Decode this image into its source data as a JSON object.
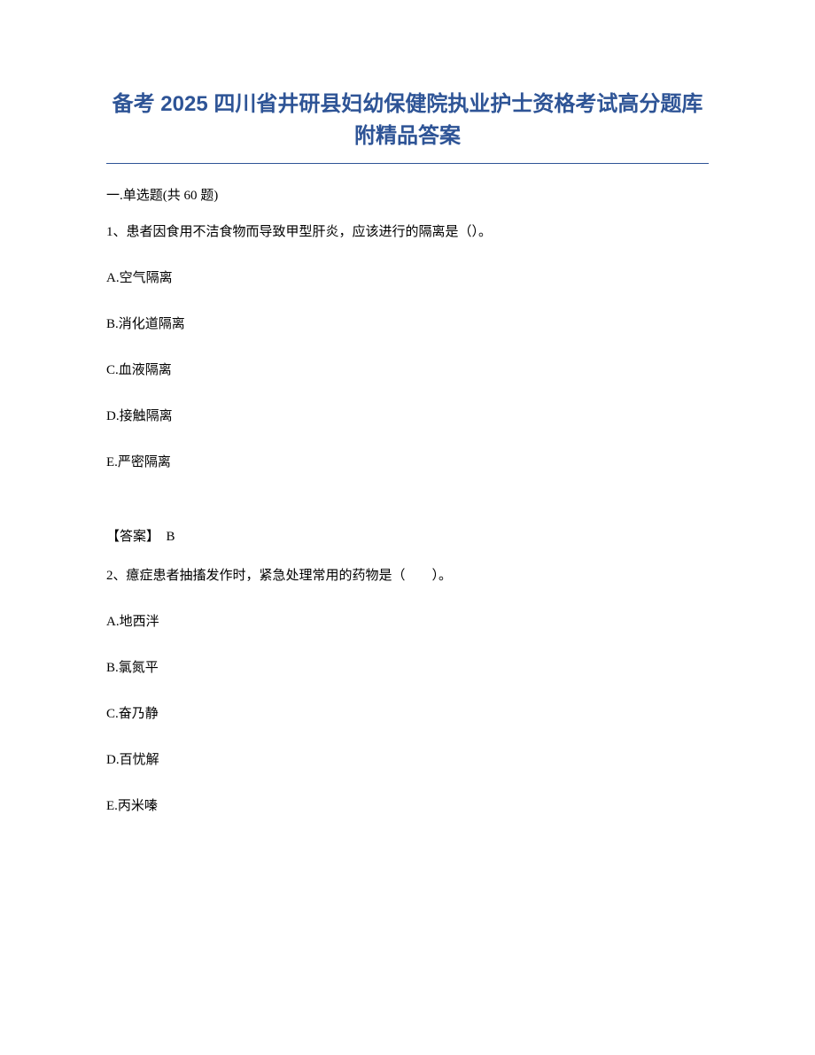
{
  "title": "备考 2025 四川省井研县妇幼保健院执业护士资格考试高分题库附精品答案",
  "section": {
    "header": "一.单选题(共 60 题)"
  },
  "questions": [
    {
      "number": "1、",
      "text": "患者因食用不洁食物而导致甲型肝炎，应该进行的隔离是（）。",
      "options": {
        "A": "A.空气隔离",
        "B": "B.消化道隔离",
        "C": "C.血液隔离",
        "D": "D.接触隔离",
        "E": "E.严密隔离"
      },
      "answer_label": "【答案】",
      "answer_value": "B"
    },
    {
      "number": "2、",
      "text": "癔症患者抽搐发作时，紧急处理常用的药物是（　　）。",
      "options": {
        "A": "A.地西泮",
        "B": "B.氯氮平",
        "C": "C.奋乃静",
        "D": "D.百忧解",
        "E": "E.丙米嗪"
      }
    }
  ]
}
